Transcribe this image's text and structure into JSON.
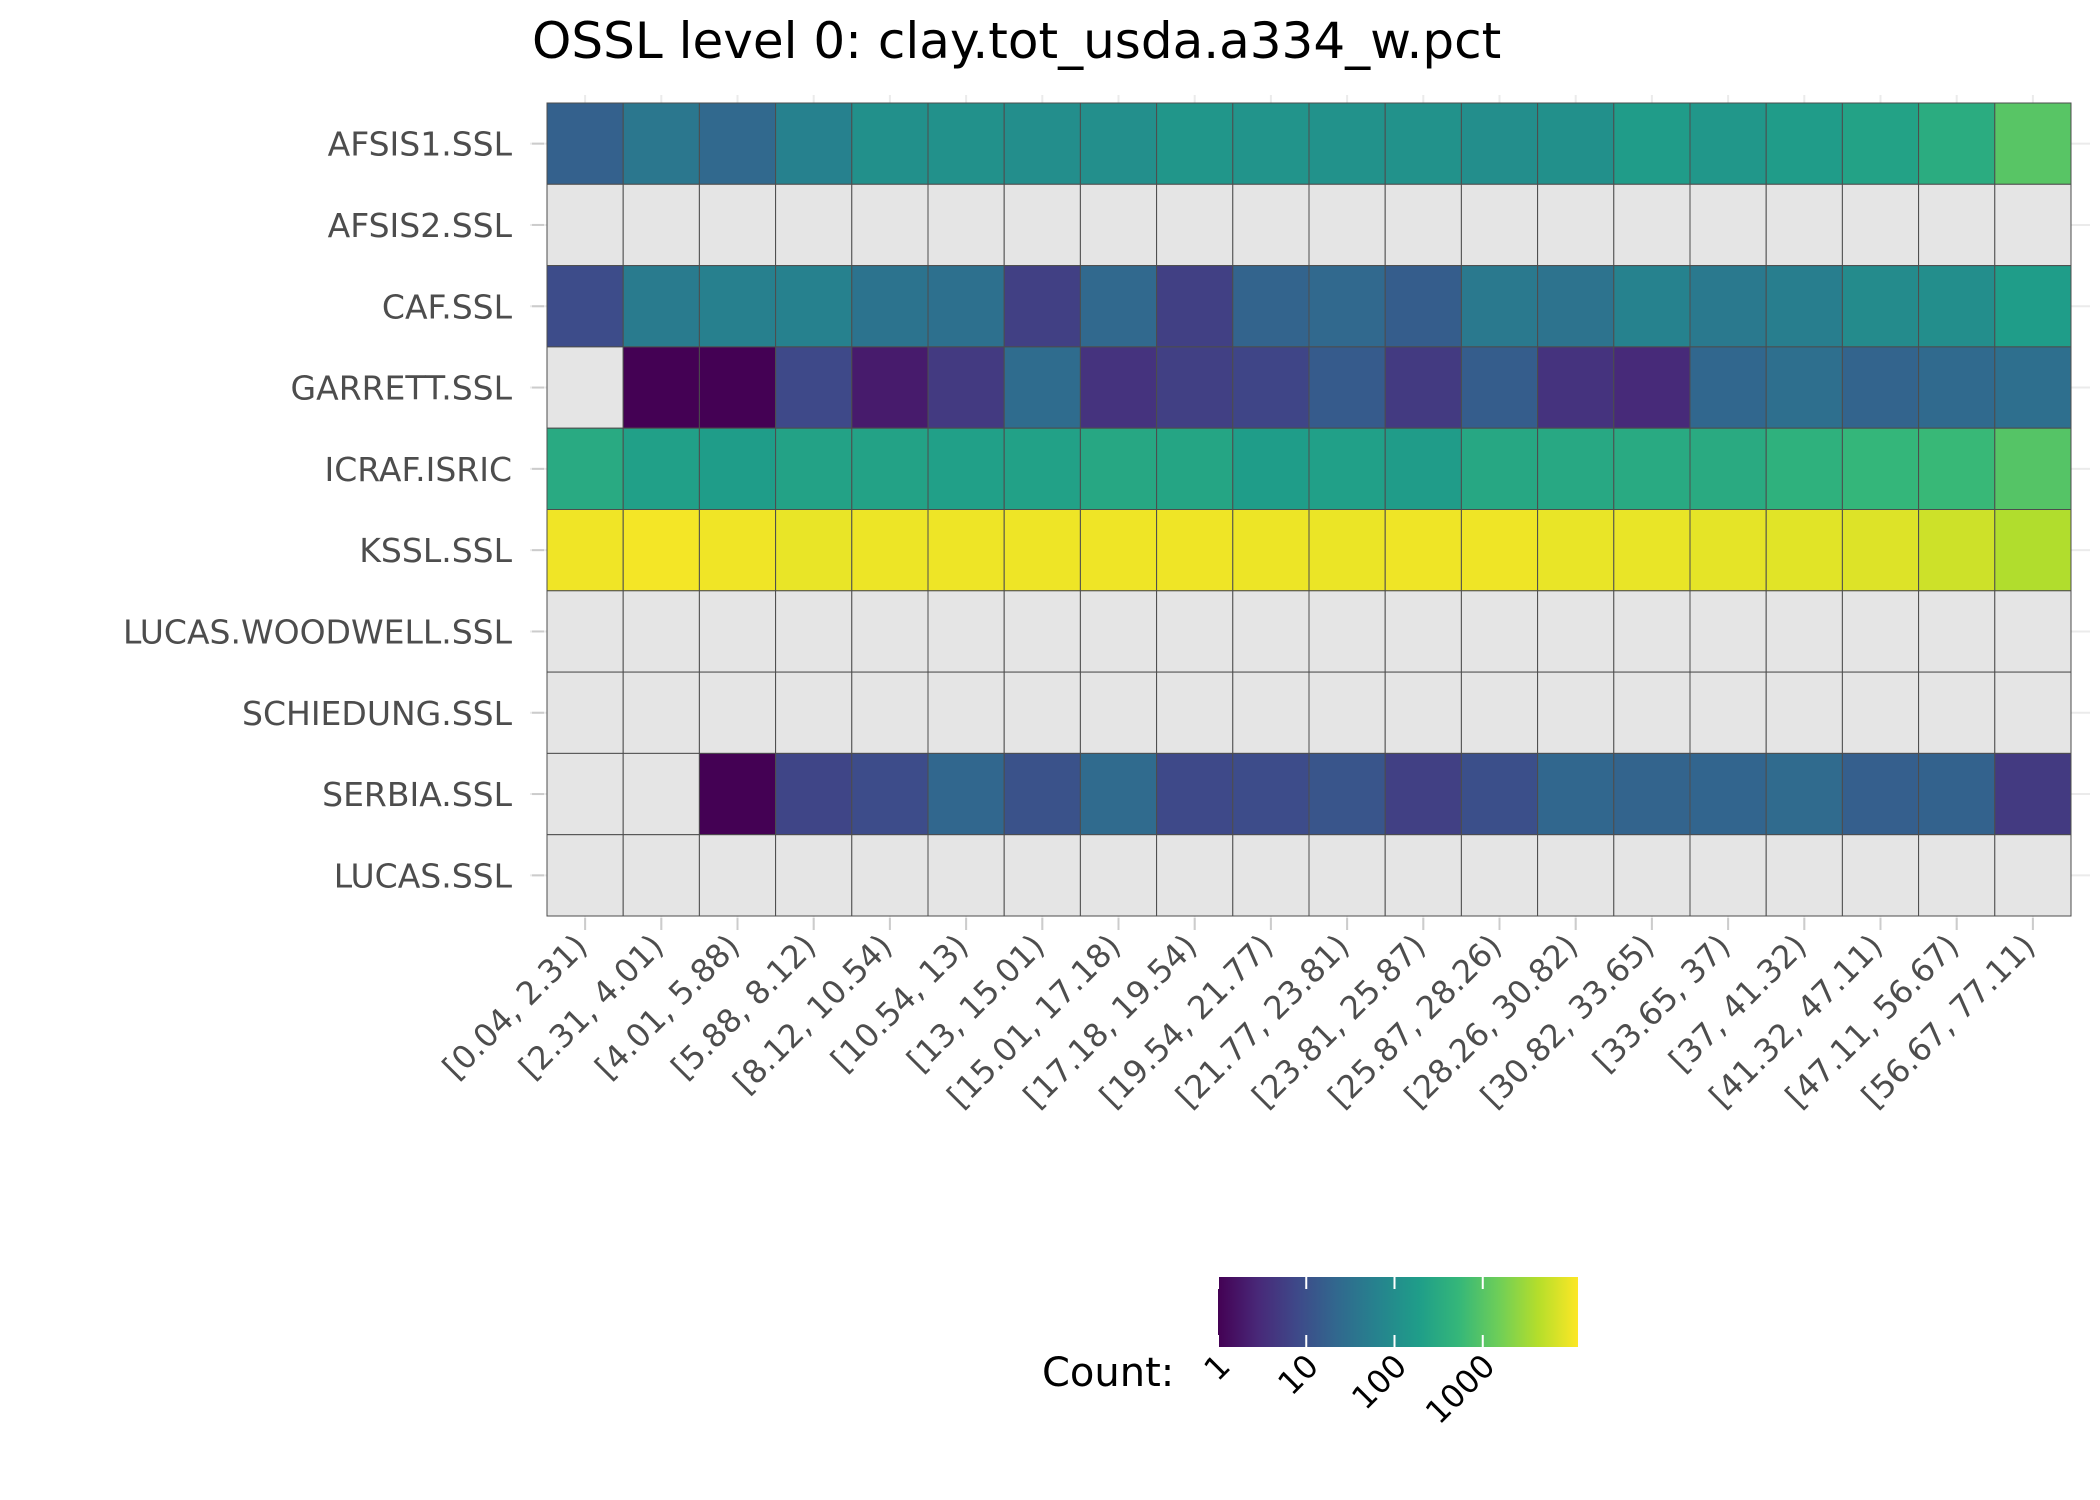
{
  "chart_data": {
    "type": "heatmap",
    "title": "OSSL level 0: clay.tot_usda.a334_w.pct",
    "xlabel": "",
    "ylabel": "",
    "grid": true,
    "scale": "log10",
    "colormap": "viridis",
    "missing_color": "#e5e5e5",
    "x": [
      "[0.04, 2.31)",
      "[2.31, 4.01)",
      "[4.01, 5.88)",
      "[5.88, 8.12)",
      "[8.12, 10.54)",
      "[10.54, 13)",
      "[13, 15.01)",
      "[15.01, 17.18)",
      "[17.18, 19.54)",
      "[19.54, 21.77)",
      "[21.77, 23.81)",
      "[23.81, 25.87)",
      "[25.87, 28.26)",
      "[28.26, 30.82)",
      "[30.82, 33.65)",
      "[33.65, 37)",
      "[37, 41.32)",
      "[41.32, 47.11)",
      "[47.11, 56.67)",
      "[56.67, 77.11)"
    ],
    "y": [
      "AFSIS1.SSL",
      "AFSIS2.SSL",
      "CAF.SSL",
      "GARRETT.SSL",
      "ICRAF.ISRIC",
      "KSSL.SSL",
      "LUCAS.WOODWELL.SSL",
      "SCHIEDUNG.SSL",
      "SERBIA.SSL",
      "LUCAS.SSL"
    ],
    "values": [
      [
        18,
        42,
        24,
        62,
        110,
        115,
        100,
        105,
        135,
        125,
        120,
        120,
        100,
        110,
        170,
        140,
        170,
        220,
        330,
        1000
      ],
      [
        null,
        null,
        null,
        null,
        null,
        null,
        null,
        null,
        null,
        null,
        null,
        null,
        null,
        null,
        null,
        null,
        null,
        null,
        null,
        null
      ],
      [
        9,
        50,
        60,
        62,
        36,
        32,
        6,
        24,
        6,
        20,
        24,
        16,
        45,
        35,
        65,
        45,
        55,
        90,
        100,
        180
      ],
      [
        null,
        1,
        1,
        8,
        2,
        5,
        27,
        4,
        6,
        7,
        15,
        5,
        16,
        4,
        3,
        22,
        30,
        20,
        25,
        30
      ],
      [
        300,
        200,
        180,
        220,
        220,
        200,
        210,
        270,
        250,
        180,
        200,
        170,
        270,
        280,
        300,
        310,
        400,
        500,
        550,
        950
      ],
      [
        10000,
        10500,
        10000,
        9000,
        9500,
        9600,
        9700,
        9800,
        9800,
        9500,
        9300,
        9800,
        9800,
        9000,
        9000,
        8500,
        8000,
        7500,
        6000,
        4000
      ],
      [
        null,
        null,
        null,
        null,
        null,
        null,
        null,
        null,
        null,
        null,
        null,
        null,
        null,
        null,
        null,
        null,
        null,
        null,
        null,
        null
      ],
      [
        null,
        null,
        null,
        null,
        null,
        null,
        null,
        null,
        null,
        null,
        null,
        null,
        null,
        null,
        null,
        null,
        null,
        null,
        null,
        null
      ],
      [
        null,
        null,
        1,
        7,
        9,
        22,
        11,
        26,
        8,
        9,
        12,
        6,
        10,
        22,
        20,
        21,
        26,
        17,
        19,
        5
      ],
      [
        null,
        null,
        null,
        null,
        null,
        null,
        null,
        null,
        null,
        null,
        null,
        null,
        null,
        null,
        null,
        null,
        null,
        null,
        null,
        null
      ]
    ],
    "colorbar": {
      "label": "Count:",
      "min": 1,
      "max": 12000,
      "ticks": [
        1,
        10,
        100,
        1000
      ],
      "tick_labels": [
        "1",
        "10",
        "100",
        "1000"
      ]
    }
  }
}
